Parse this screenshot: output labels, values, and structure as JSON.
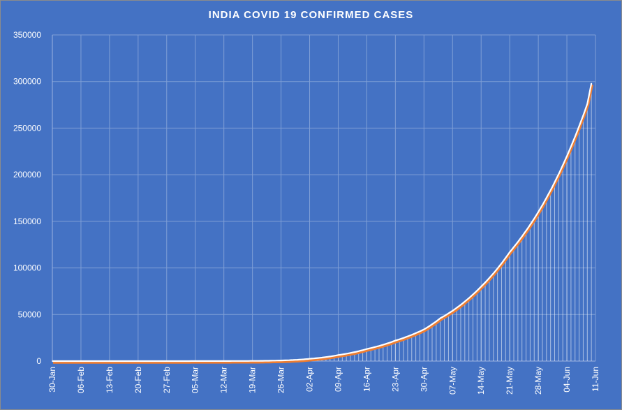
{
  "chart_data": {
    "type": "area",
    "title": "INDIA COVID 19 CONFIRMED CASES",
    "xlabel": "",
    "ylabel": "",
    "ylim": [
      0,
      350000
    ],
    "y_ticks": [
      "0",
      "50000",
      "100000",
      "150000",
      "200000",
      "250000",
      "300000",
      "350000"
    ],
    "x_ticks": [
      "30-Jan",
      "06-Feb",
      "13-Feb",
      "20-Feb",
      "27-Feb",
      "05-Mar",
      "12-Mar",
      "19-Mar",
      "26-Mar",
      "02-Apr",
      "09-Apr",
      "16-Apr",
      "23-Apr",
      "30-Apr",
      "07-May",
      "14-May",
      "21-May",
      "28-May",
      "04-Jun",
      "11-Jun"
    ],
    "x_range": [
      "30-Jan",
      "11-Jun"
    ],
    "grid": true,
    "legend": "none",
    "colors": {
      "background": "#4472c4",
      "line": "#ffffff",
      "line_shadow": "#ed7d31",
      "gridline": "#7f9fd6"
    },
    "series": [
      {
        "x": [
          "30-Jan",
          "19-Mar",
          "26-Mar",
          "02-Apr",
          "09-Apr",
          "16-Apr",
          "23-Apr",
          "30-Apr",
          "04-May",
          "07-May",
          "14-May",
          "21-May",
          "28-May",
          "04-Jun",
          "09-Jun",
          "10-Jun"
        ],
        "values": [
          1,
          200,
          700,
          2500,
          6500,
          13000,
          22000,
          34000,
          46000,
          54000,
          80000,
          117000,
          160000,
          220000,
          276000,
          298000
        ]
      }
    ]
  }
}
